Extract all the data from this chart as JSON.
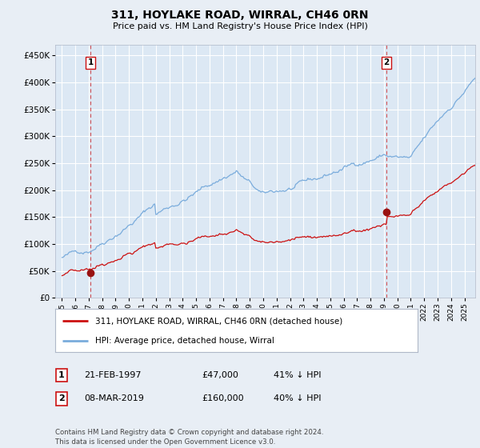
{
  "title": "311, HOYLAKE ROAD, WIRRAL, CH46 0RN",
  "subtitle": "Price paid vs. HM Land Registry's House Price Index (HPI)",
  "footer": "Contains HM Land Registry data © Crown copyright and database right 2024.\nThis data is licensed under the Open Government Licence v3.0.",
  "legend_line1": "311, HOYLAKE ROAD, WIRRAL, CH46 0RN (detached house)",
  "legend_line2": "HPI: Average price, detached house, Wirral",
  "ann1_num": "1",
  "ann1_date": "21-FEB-1997",
  "ann1_price": "£47,000",
  "ann1_pct": "41% ↓ HPI",
  "ann2_num": "2",
  "ann2_date": "08-MAR-2019",
  "ann2_price": "£160,000",
  "ann2_pct": "40% ↓ HPI",
  "ylim": [
    0,
    470000
  ],
  "yticks": [
    0,
    50000,
    100000,
    150000,
    200000,
    250000,
    300000,
    350000,
    400000,
    450000
  ],
  "ytick_labels": [
    "£0",
    "£50K",
    "£100K",
    "£150K",
    "£200K",
    "£250K",
    "£300K",
    "£350K",
    "£400K",
    "£450K"
  ],
  "xlim": [
    1994.5,
    2025.8
  ],
  "xtick_years": [
    1995,
    1996,
    1997,
    1998,
    1999,
    2000,
    2001,
    2002,
    2003,
    2004,
    2005,
    2006,
    2007,
    2008,
    2009,
    2010,
    2011,
    2012,
    2013,
    2014,
    2015,
    2016,
    2017,
    2018,
    2019,
    2020,
    2021,
    2022,
    2023,
    2024,
    2025
  ],
  "bg_color": "#e8eef5",
  "plot_bg": "#dce8f4",
  "grid_color": "#ffffff",
  "line_color_hpi": "#7aacdc",
  "line_color_price": "#cc1111",
  "marker_color": "#991111",
  "vline_color": "#cc1111",
  "marker1_x": 1997.13,
  "marker1_y": 47000,
  "marker2_x": 2019.17,
  "marker2_y": 160000
}
